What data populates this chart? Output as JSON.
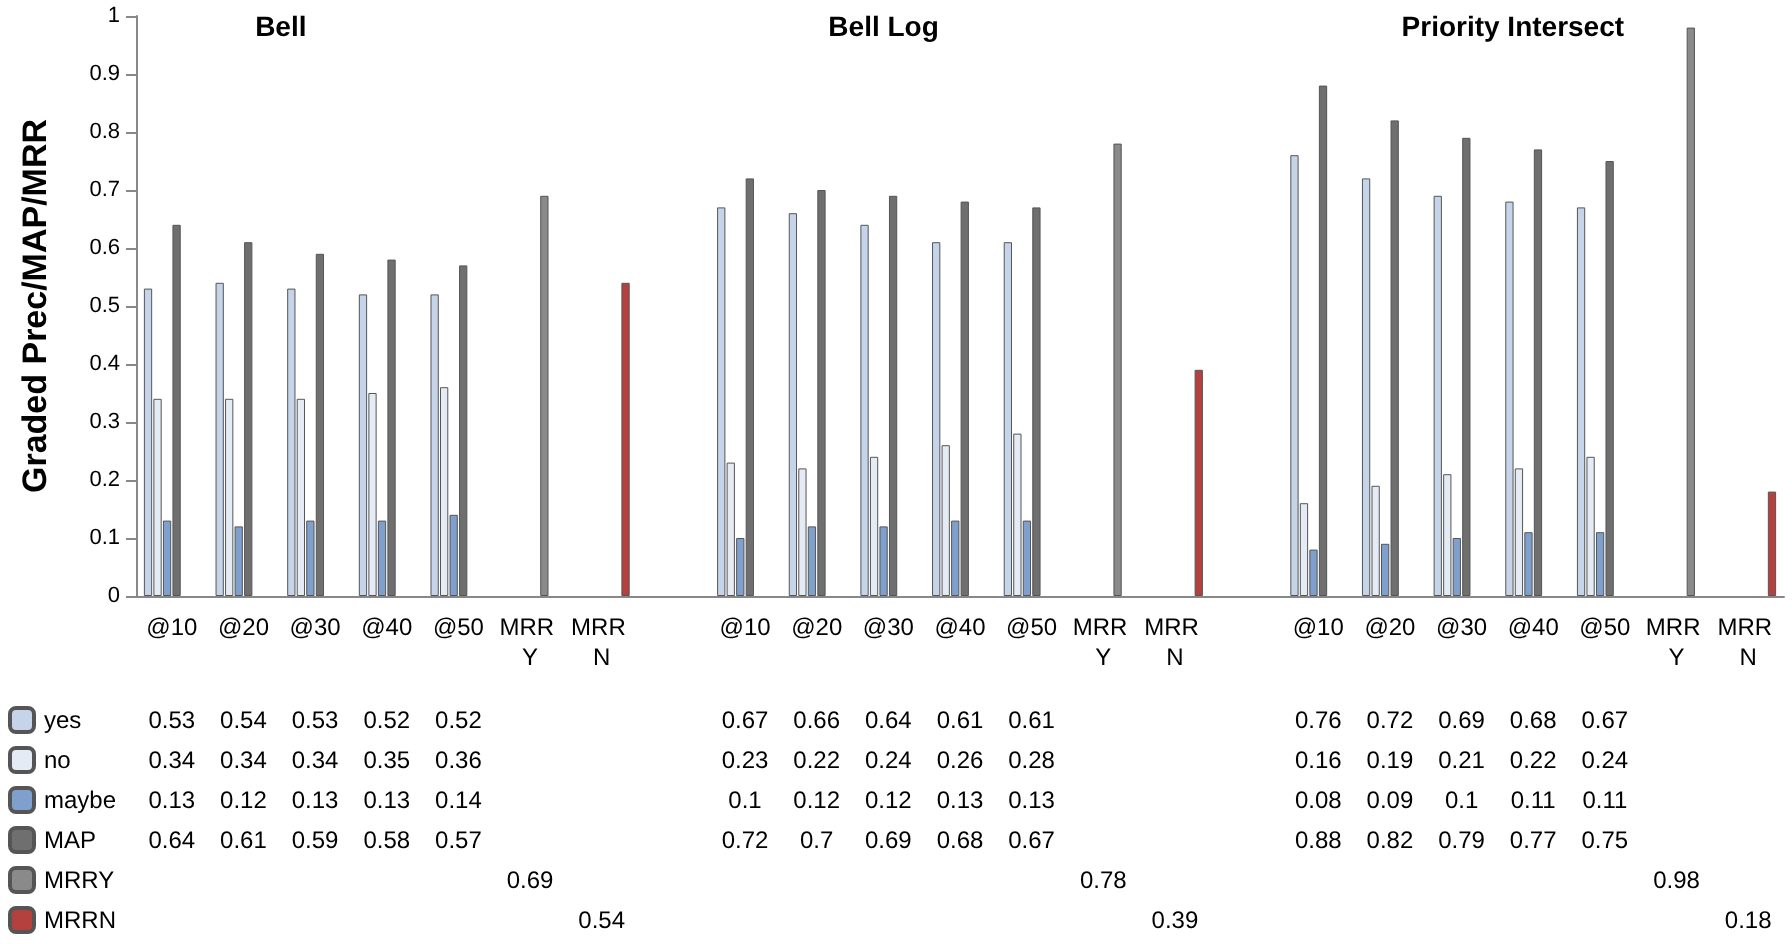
{
  "chart_data": {
    "type": "bar",
    "ylabel": "Graded Prec/MAP/MRR",
    "annotations": [
      "Bell",
      "Bell Log",
      "Priority Intersect"
    ],
    "categories": [
      "@10",
      "@20",
      "@30",
      "@40",
      "@50",
      "MRR Y",
      "MRR N",
      null,
      "@10",
      "@20",
      "@30",
      "@40",
      "@50",
      "MRR Y",
      "MRR N",
      null,
      "@10",
      "@20",
      "@30",
      "@40",
      "@50",
      "MRR Y",
      "MRR N"
    ],
    "series": [
      {
        "name": "yes",
        "color": "#c6d4ea",
        "values": [
          0.53,
          0.54,
          0.53,
          0.52,
          0.52,
          null,
          null,
          null,
          0.67,
          0.66,
          0.64,
          0.61,
          0.61,
          null,
          null,
          null,
          0.76,
          0.72,
          0.69,
          0.68,
          0.67,
          null,
          null
        ]
      },
      {
        "name": "no",
        "color": "#e4ebf5",
        "values": [
          0.34,
          0.34,
          0.34,
          0.35,
          0.36,
          null,
          null,
          null,
          0.23,
          0.22,
          0.24,
          0.26,
          0.28,
          null,
          null,
          null,
          0.16,
          0.19,
          0.21,
          0.22,
          0.24,
          null,
          null
        ]
      },
      {
        "name": "maybe",
        "color": "#7f9fcc",
        "values": [
          0.13,
          0.12,
          0.13,
          0.13,
          0.14,
          null,
          null,
          null,
          0.1,
          0.12,
          0.12,
          0.13,
          0.13,
          null,
          null,
          null,
          0.08,
          0.09,
          0.1,
          0.11,
          0.11,
          null,
          null
        ]
      },
      {
        "name": "MAP",
        "color": "#6f6f6f",
        "values": [
          0.64,
          0.61,
          0.59,
          0.58,
          0.57,
          null,
          null,
          null,
          0.72,
          0.7,
          0.69,
          0.68,
          0.67,
          null,
          null,
          null,
          0.88,
          0.82,
          0.79,
          0.77,
          0.75,
          null,
          null
        ]
      },
      {
        "name": "MRRY",
        "color": "#8a8a8a",
        "values": [
          null,
          null,
          null,
          null,
          null,
          0.69,
          null,
          null,
          null,
          null,
          null,
          null,
          null,
          0.78,
          null,
          null,
          null,
          null,
          null,
          null,
          null,
          0.98,
          null
        ]
      },
      {
        "name": "MRRN",
        "color": "#b5413e",
        "values": [
          null,
          null,
          null,
          null,
          null,
          null,
          0.54,
          null,
          null,
          null,
          null,
          null,
          null,
          null,
          0.39,
          null,
          null,
          null,
          null,
          null,
          null,
          null,
          0.18
        ]
      }
    ],
    "ylim": [
      0,
      1
    ],
    "yticks": [
      0,
      0.1,
      0.2,
      0.3,
      0.4,
      0.5,
      0.6,
      0.7,
      0.8,
      0.9,
      1
    ],
    "grid": false,
    "legend": "bottom left",
    "data_labels": true
  }
}
